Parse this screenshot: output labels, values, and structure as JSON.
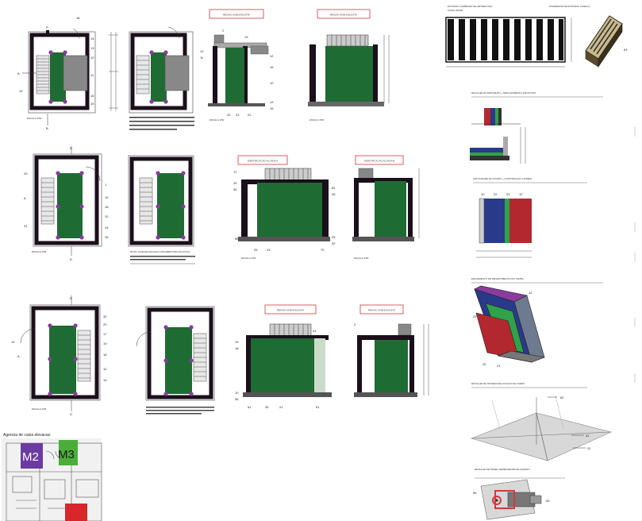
{
  "colors": {
    "shaft_green": "#1f6b34",
    "wall_dark": "#1a0f1a",
    "marker_purple": "#8a3b9e",
    "red_outline": "#d23a3a",
    "blue": "#2a3a8a",
    "red": "#b3282e",
    "bright_green": "#2fa24a",
    "m2_purple": "#6b3aa3",
    "m3_green": "#4cae3a",
    "alert_red": "#d8262a"
  },
  "section_titles": {
    "r1_side": "REGIAO SOB ENCOSTA",
    "r1_front": "REGIAO SOB ENCOSTA",
    "r2_side": "IDENTIFICACAO ALCADA A",
    "r2_front": "IDENTIFICACAO ALCADA B",
    "r3_side": "REGIAO SOB ENCOSTA",
    "r3_front": "REGIAO SOB ENCOSTA"
  },
  "right_titles": {
    "top": "ESTRADO CAMBIADO DE SETRES MAX",
    "top_sub": "CORAL BASE",
    "iso_top": "PORMENOR DE ESTRADO CANECA",
    "detail1": "DETALHE DO PARAPEITO + DESLIGAMENTO ENCOSTAS",
    "detail2": "CRITICIDADE DO FUNDO + CONSTRUCAO LATERAL",
    "detail3": "ENCHIMENTO DE REVESTIMENTO DO TAMPA",
    "detail4": "DETALHE DE SISTEMA DE FIXACAO DE TAMPA",
    "detail5": "DETALHE DE PAINEL PERMANENTE DE ACESSO"
  },
  "notes": {
    "r1": "NOTA: VERIFICAR COTAS NO LOCAL ANTES DE EXECUTAR ESTRUTURA",
    "r2": "NOTA: ALINHAR ESCADA COM ABERTURA DO POCO"
  },
  "keyplan": {
    "title": "Agencia de caixa elevacao",
    "m2": "M2",
    "m3": "M3"
  },
  "scale_texts": {
    "plan": "ESCALA 1/50",
    "side": "ESCALA 1/50"
  },
  "callouts": {
    "a": "A",
    "b": "B",
    "p": "P",
    "d": "D",
    "n1": "1",
    "n2": "2",
    "n3": "3",
    "n5": "5",
    "n10": "10",
    "n11": "11",
    "n12": "12",
    "n13": "13",
    "n14": "14",
    "n15": "15",
    "n16": "16",
    "n17": "17",
    "n18": "18",
    "n19": "19",
    "n20": "20",
    "n21": "21",
    "n22": "22",
    "n23": "23",
    "n25": "25",
    "n26": "26",
    "n29": "29",
    "n30": "30",
    "n31": "31",
    "n32": "32",
    "n41": "41",
    "n51": "51",
    "n55": "55",
    "n61": "61",
    "n62": "62",
    "n63": "63",
    "n64": "64",
    "n70": "70"
  }
}
